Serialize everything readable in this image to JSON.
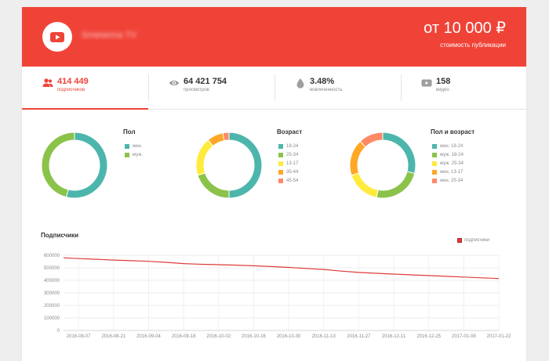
{
  "header": {
    "channel_name": "Smetanna TV",
    "price": "от 10 000 ₽",
    "price_caption": "стоимость публикации",
    "bg_color": "#f04338"
  },
  "stats": [
    {
      "icon": "people-icon",
      "value": "414 449",
      "caption": "подписчиков",
      "active": true
    },
    {
      "icon": "eye-icon",
      "value": "64 421 754",
      "caption": "просмотров",
      "active": false
    },
    {
      "icon": "drop-icon",
      "value": "3.48%",
      "caption": "вовлеченность",
      "active": false
    },
    {
      "icon": "video-icon",
      "value": "158",
      "caption": "видео",
      "active": false
    }
  ],
  "donuts": [
    {
      "title": "Пол",
      "legend": [
        {
          "label": "жен.",
          "color": "#4db6ac"
        },
        {
          "label": "муж.",
          "color": "#8bc34a"
        }
      ],
      "slices": [
        {
          "value": 0.54,
          "color": "#4db6ac"
        },
        {
          "value": 0.46,
          "color": "#8bc34a"
        }
      ]
    },
    {
      "title": "Возраст",
      "legend": [
        {
          "label": "18-24",
          "color": "#4db6ac"
        },
        {
          "label": "25-34",
          "color": "#8bc34a"
        },
        {
          "label": "13-17",
          "color": "#ffeb3b"
        },
        {
          "label": "35-44",
          "color": "#ffa726"
        },
        {
          "label": "45-54",
          "color": "#ff8a65"
        }
      ],
      "slices": [
        {
          "value": 0.5,
          "color": "#4db6ac"
        },
        {
          "value": 0.2,
          "color": "#8bc34a"
        },
        {
          "value": 0.19,
          "color": "#ffeb3b"
        },
        {
          "value": 0.08,
          "color": "#ffa726"
        },
        {
          "value": 0.03,
          "color": "#ff8a65"
        }
      ]
    },
    {
      "title": "Пол и возраст",
      "legend": [
        {
          "label": "жен. 18-24",
          "color": "#4db6ac"
        },
        {
          "label": "муж. 18-24",
          "color": "#8bc34a"
        },
        {
          "label": "муж. 25-34",
          "color": "#ffeb3b"
        },
        {
          "label": "жен. 13-17",
          "color": "#ffa726"
        },
        {
          "label": "жен. 25-34",
          "color": "#ff8a65"
        }
      ],
      "slices": [
        {
          "value": 0.29,
          "color": "#4db6ac"
        },
        {
          "value": 0.24,
          "color": "#8bc34a"
        },
        {
          "value": 0.17,
          "color": "#ffeb3b"
        },
        {
          "value": 0.18,
          "color": "#ffa726"
        },
        {
          "value": 0.12,
          "color": "#ff8a65"
        }
      ]
    }
  ],
  "chart_data": {
    "type": "line",
    "title": "Подписчики",
    "series": [
      {
        "name": "подписчики",
        "color": "#e03a3a",
        "x": [
          "2016-08-01",
          "2016-08-07",
          "2016-08-14",
          "2016-08-21",
          "2016-08-28",
          "2016-09-04",
          "2016-09-11",
          "2016-09-18",
          "2016-09-25",
          "2016-10-02",
          "2016-10-09",
          "2016-10-16",
          "2016-10-23",
          "2016-10-30",
          "2016-11-06",
          "2016-11-13",
          "2016-11-20",
          "2016-11-27",
          "2016-12-04",
          "2016-12-11",
          "2016-12-18",
          "2016-12-25",
          "2017-01-01",
          "2017-01-08",
          "2017-01-15",
          "2017-01-22"
        ],
        "values": [
          580000,
          574000,
          568000,
          562000,
          557000,
          552000,
          544000,
          534000,
          528000,
          525000,
          521000,
          516000,
          510000,
          503000,
          495000,
          487000,
          474000,
          463000,
          456000,
          450000,
          444000,
          438000,
          432000,
          426000,
          420000,
          414449
        ]
      }
    ],
    "x_tick_labels": [
      "2016-08-07",
      "2016-08-21",
      "2016-09-04",
      "2016-09-18",
      "2016-10-02",
      "2016-10-16",
      "2016-10-30",
      "2016-11-13",
      "2016-11-27",
      "2016-12-11",
      "2016-12-25",
      "2017-01-08",
      "2017-01-22"
    ],
    "y_ticks": [
      0,
      100000,
      200000,
      300000,
      400000,
      500000,
      600000
    ],
    "ylim": [
      0,
      600000
    ],
    "grid": true,
    "legend_position": "top-right"
  }
}
